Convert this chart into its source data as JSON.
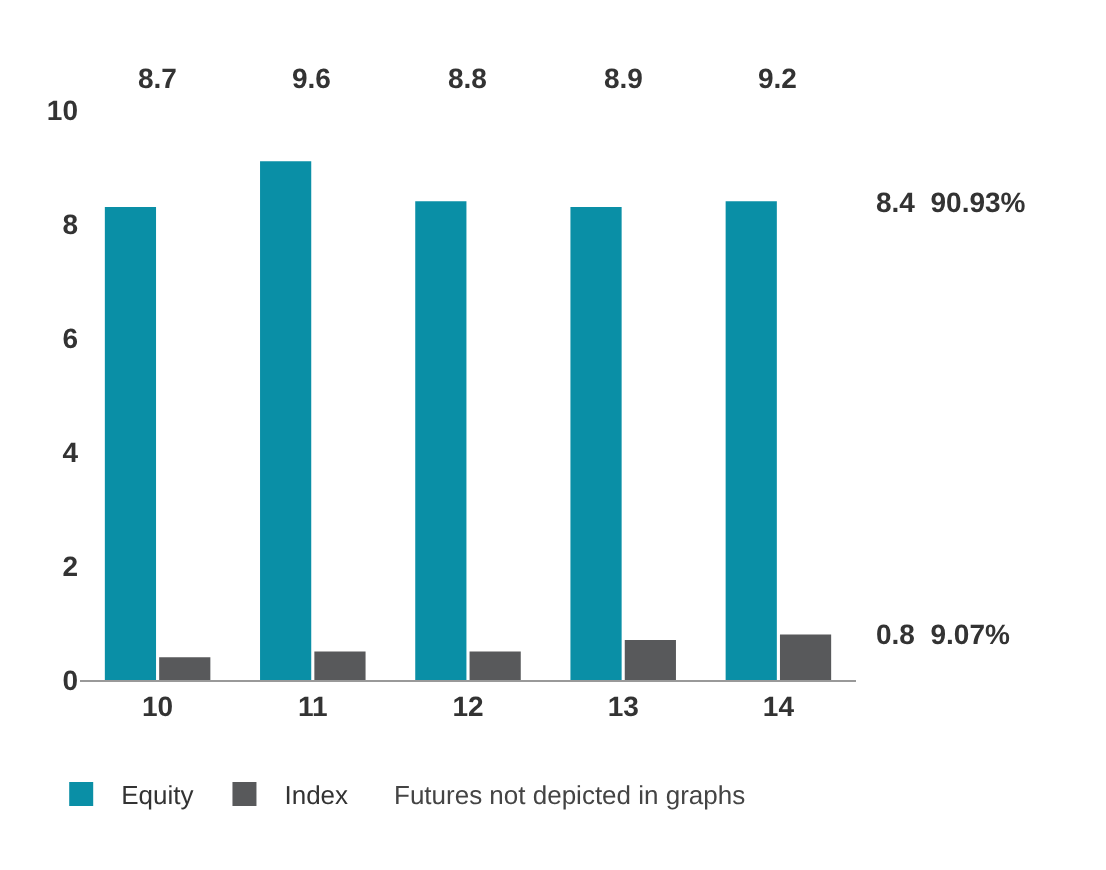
{
  "chart_data": {
    "type": "bar",
    "categories": [
      "10",
      "11",
      "12",
      "13",
      "14"
    ],
    "series": [
      {
        "name": "Equity",
        "color": "#0a8fa6",
        "values": [
          8.3,
          9.1,
          8.4,
          8.3,
          8.4
        ]
      },
      {
        "name": "Index",
        "color": "#58595b",
        "values": [
          0.4,
          0.5,
          0.5,
          0.7,
          0.8
        ]
      }
    ],
    "ylim": [
      0,
      10
    ],
    "yticks": [
      0,
      2,
      4,
      6,
      8,
      10
    ],
    "legend": "bottom",
    "annotations": [
      "8.7",
      "9.6",
      "8.8",
      "8.9",
      "9.2",
      "8.4  90.93%",
      "0.8  9.07%",
      "Futures not depicted in graphs"
    ]
  }
}
